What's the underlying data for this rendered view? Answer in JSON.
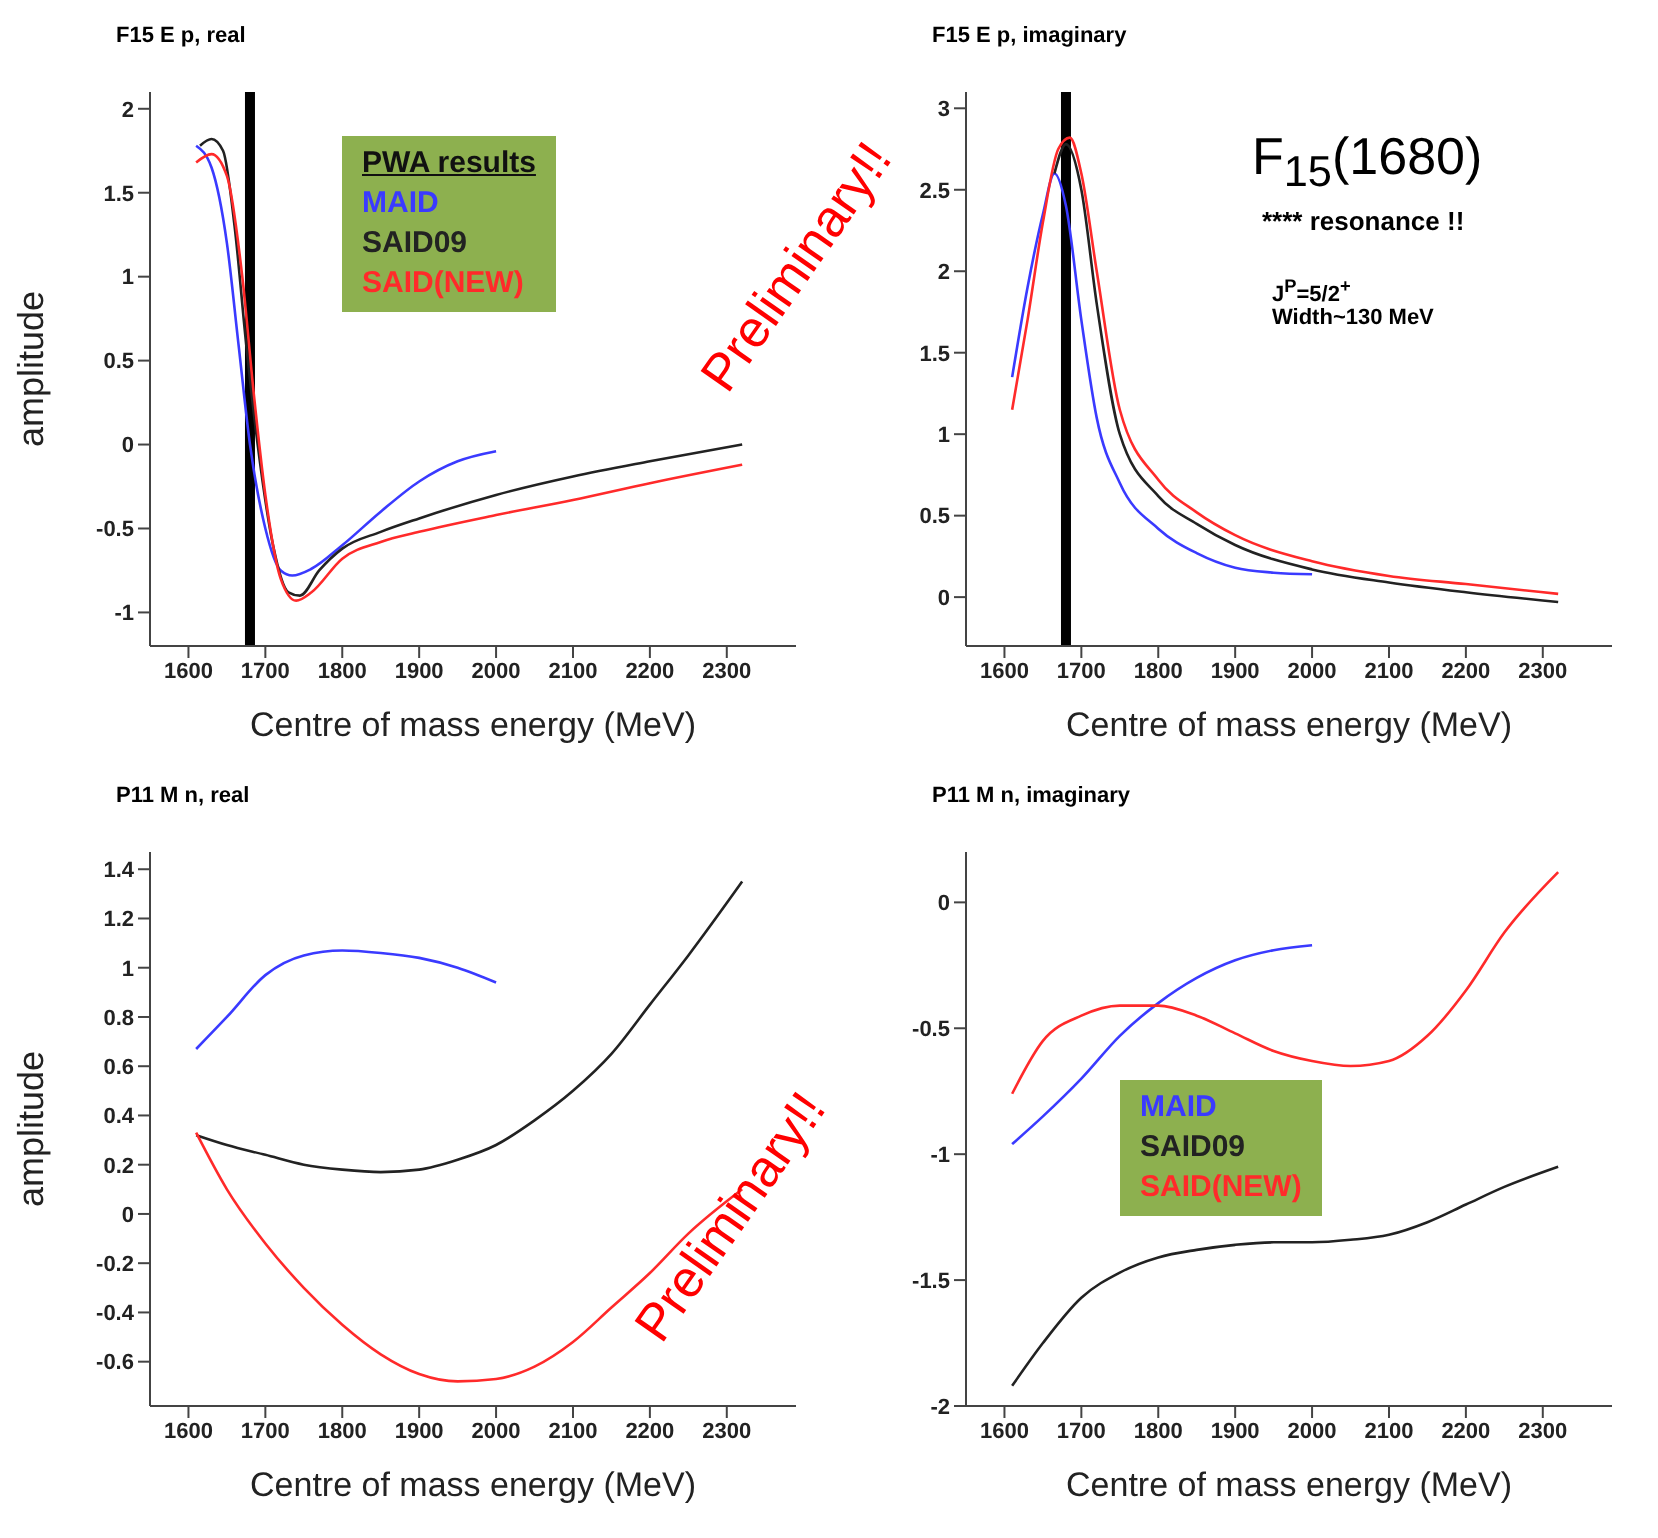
{
  "chart_data": [
    {
      "type": "line",
      "title": "F15 E p, real",
      "xlabel": "Centre of mass energy (MeV)",
      "ylabel": "amplitude",
      "xlim": [
        1550,
        2390
      ],
      "xticks": [
        1600,
        1700,
        1800,
        1900,
        2000,
        2100,
        2200,
        2300
      ],
      "ylim": [
        -1.2,
        2.1
      ],
      "yticks": [
        -1,
        -0.5,
        0,
        0.5,
        1,
        1.5,
        2
      ],
      "legend": "top right",
      "legend_title": "PWA results",
      "marker": "none",
      "ref_lines": [
        {
          "axis": "x",
          "value": 1680,
          "color": "#000000"
        }
      ],
      "annotations": [
        "Preliminary!!"
      ],
      "series": [
        {
          "name": "MAID",
          "color": "#3a3aff",
          "x": [
            1610,
            1630,
            1650,
            1665,
            1680,
            1700,
            1720,
            1735,
            1760,
            1800,
            1850,
            1900,
            1950,
            2000
          ],
          "values": [
            1.78,
            1.65,
            1.2,
            0.6,
            0.0,
            -0.5,
            -0.75,
            -0.78,
            -0.74,
            -0.6,
            -0.4,
            -0.22,
            -0.1,
            -0.04
          ]
        },
        {
          "name": "SAID09",
          "color": "#222222",
          "x": [
            1615,
            1630,
            1645,
            1660,
            1675,
            1690,
            1710,
            1730,
            1745,
            1770,
            1800,
            1850,
            1900,
            2000,
            2100,
            2200,
            2320
          ],
          "values": [
            1.78,
            1.82,
            1.75,
            1.3,
            0.6,
            0.0,
            -0.6,
            -0.88,
            -0.9,
            -0.75,
            -0.62,
            -0.52,
            -0.44,
            -0.3,
            -0.19,
            -0.1,
            0.0
          ]
        },
        {
          "name": "SAID(NEW)",
          "color": "#ff2a2a",
          "x": [
            1610,
            1630,
            1650,
            1670,
            1685,
            1700,
            1720,
            1740,
            1760,
            1800,
            1850,
            1900,
            2000,
            2100,
            2200,
            2320
          ],
          "values": [
            1.68,
            1.73,
            1.6,
            1.0,
            0.3,
            -0.3,
            -0.8,
            -0.93,
            -0.88,
            -0.68,
            -0.58,
            -0.52,
            -0.42,
            -0.33,
            -0.23,
            -0.12
          ]
        }
      ]
    },
    {
      "type": "line",
      "title": "F15 E p, imaginary",
      "xlabel": "Centre of mass energy (MeV)",
      "xlim": [
        1550,
        2390
      ],
      "xticks": [
        1600,
        1700,
        1800,
        1900,
        2000,
        2100,
        2200,
        2300
      ],
      "ylim": [
        -0.3,
        3.1
      ],
      "yticks": [
        0,
        0.5,
        1,
        1.5,
        2,
        2.5,
        3
      ],
      "legend": false,
      "marker": "none",
      "ref_lines": [
        {
          "axis": "x",
          "value": 1680,
          "color": "#000000"
        }
      ],
      "annotations": [
        "F$_{15}$(1680)",
        "**** resonance !!",
        "J$^{P}$=5/2$^{+}$",
        "Width~130 MeV"
      ],
      "series": [
        {
          "color": "#3a3aff",
          "x": [
            1610,
            1630,
            1650,
            1665,
            1680,
            1700,
            1720,
            1750,
            1800,
            1850,
            1900,
            1950,
            2000
          ],
          "values": [
            1.35,
            1.9,
            2.35,
            2.6,
            2.4,
            1.7,
            1.1,
            0.7,
            0.42,
            0.27,
            0.18,
            0.15,
            0.14
          ]
        },
        {
          "color": "#222222",
          "x": [
            1665,
            1680,
            1700,
            1720,
            1750,
            1800,
            1850,
            1900,
            2000,
            2100,
            2200,
            2320
          ],
          "values": [
            2.6,
            2.78,
            2.5,
            1.8,
            1.0,
            0.62,
            0.45,
            0.32,
            0.17,
            0.09,
            0.03,
            -0.03
          ]
        },
        {
          "color": "#ff2a2a",
          "x": [
            1610,
            1630,
            1650,
            1670,
            1685,
            1700,
            1720,
            1750,
            1800,
            1850,
            1900,
            2000,
            2100,
            2200,
            2320
          ],
          "values": [
            1.15,
            1.7,
            2.3,
            2.75,
            2.82,
            2.6,
            2.0,
            1.15,
            0.72,
            0.52,
            0.38,
            0.22,
            0.13,
            0.08,
            0.02
          ]
        }
      ]
    },
    {
      "type": "line",
      "title": "P11 M n, real",
      "xlabel": "Centre of mass energy (MeV)",
      "ylabel": "amplitude",
      "xlim": [
        1550,
        2390
      ],
      "xticks": [
        1600,
        1700,
        1800,
        1900,
        2000,
        2100,
        2200,
        2300
      ],
      "ylim": [
        -0.78,
        1.47
      ],
      "yticks": [
        -0.6,
        -0.4,
        -0.2,
        0,
        0.2,
        0.4,
        0.6,
        0.8,
        1,
        1.2,
        1.4
      ],
      "legend": false,
      "marker": "none",
      "annotations": [
        "Preliminary!!"
      ],
      "series": [
        {
          "color": "#3a3aff",
          "x": [
            1610,
            1650,
            1700,
            1750,
            1800,
            1850,
            1900,
            1950,
            2000
          ],
          "values": [
            0.67,
            0.8,
            0.97,
            1.05,
            1.07,
            1.06,
            1.04,
            1.0,
            0.94
          ]
        },
        {
          "color": "#222222",
          "x": [
            1610,
            1650,
            1700,
            1750,
            1800,
            1850,
            1900,
            1950,
            2000,
            2050,
            2100,
            2150,
            2200,
            2250,
            2320
          ],
          "values": [
            0.32,
            0.28,
            0.24,
            0.2,
            0.18,
            0.17,
            0.18,
            0.22,
            0.28,
            0.38,
            0.5,
            0.65,
            0.85,
            1.05,
            1.35
          ]
        },
        {
          "color": "#ff2a2a",
          "x": [
            1610,
            1650,
            1700,
            1750,
            1800,
            1850,
            1900,
            1950,
            2000,
            2050,
            2100,
            2150,
            2200,
            2250,
            2320
          ],
          "values": [
            0.33,
            0.1,
            -0.12,
            -0.3,
            -0.45,
            -0.57,
            -0.65,
            -0.68,
            -0.67,
            -0.62,
            -0.52,
            -0.38,
            -0.24,
            -0.08,
            0.1
          ]
        }
      ]
    },
    {
      "type": "line",
      "title": "P11 M n, imaginary",
      "xlabel": "Centre of mass energy (MeV)",
      "xlim": [
        1550,
        2390
      ],
      "xticks": [
        1600,
        1700,
        1800,
        1900,
        2000,
        2100,
        2200,
        2300
      ],
      "ylim": [
        -2,
        0.2
      ],
      "yticks": [
        -2,
        -1.5,
        -1,
        -0.5,
        0
      ],
      "legend": "center",
      "marker": "none",
      "series": [
        {
          "name": "MAID",
          "color": "#3a3aff",
          "x": [
            1610,
            1650,
            1700,
            1750,
            1800,
            1850,
            1900,
            1950,
            2000
          ],
          "values": [
            -0.96,
            -0.85,
            -0.7,
            -0.53,
            -0.4,
            -0.3,
            -0.23,
            -0.19,
            -0.17
          ]
        },
        {
          "name": "SAID09",
          "color": "#222222",
          "x": [
            1610,
            1650,
            1700,
            1750,
            1800,
            1850,
            1900,
            1950,
            2000,
            2050,
            2100,
            2150,
            2200,
            2250,
            2320
          ],
          "values": [
            -1.92,
            -1.75,
            -1.57,
            -1.47,
            -1.41,
            -1.38,
            -1.36,
            -1.35,
            -1.35,
            -1.34,
            -1.32,
            -1.27,
            -1.2,
            -1.13,
            -1.05
          ]
        },
        {
          "name": "SAID(NEW)",
          "color": "#ff2a2a",
          "x": [
            1610,
            1650,
            1700,
            1750,
            1800,
            1850,
            1900,
            1950,
            2000,
            2050,
            2100,
            2150,
            2200,
            2250,
            2320
          ],
          "values": [
            -0.76,
            -0.55,
            -0.45,
            -0.41,
            -0.41,
            -0.45,
            -0.52,
            -0.59,
            -0.63,
            -0.65,
            -0.63,
            -0.53,
            -0.35,
            -0.12,
            0.12
          ]
        }
      ]
    }
  ]
}
